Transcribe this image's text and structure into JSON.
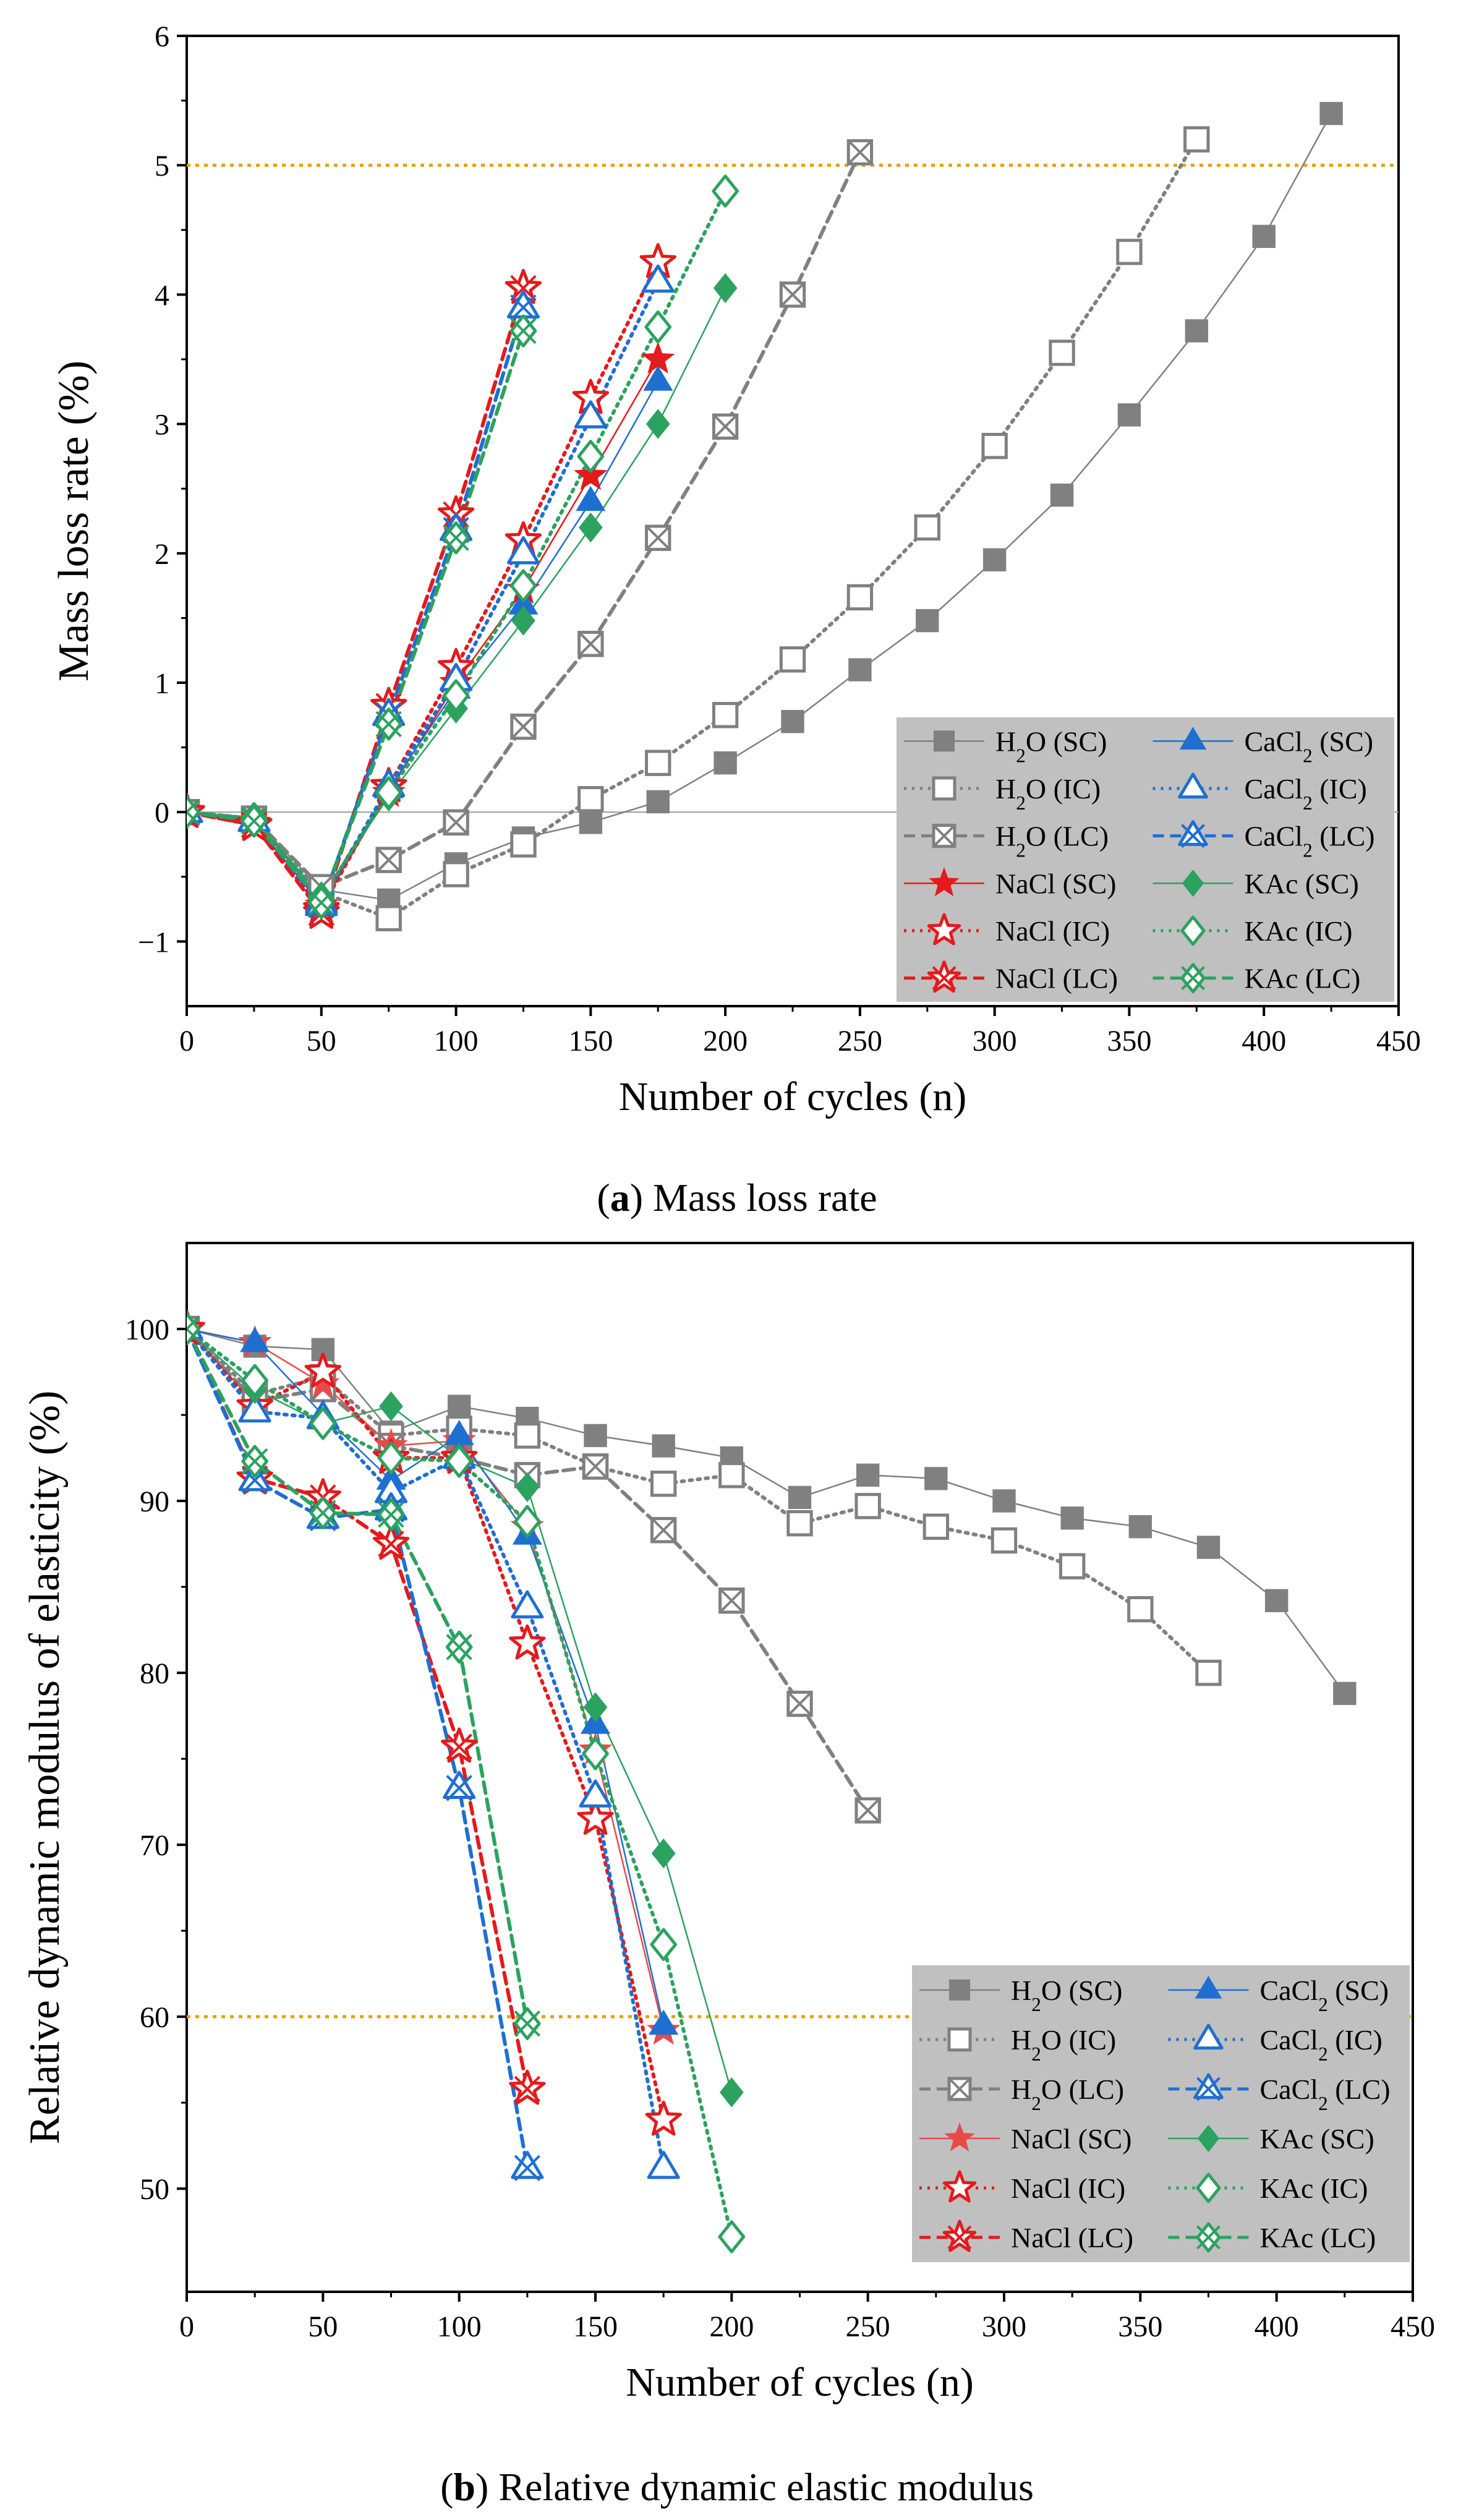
{
  "panels": [
    {
      "caption_letter": "a",
      "caption_text": "Mass loss rate"
    },
    {
      "caption_letter": "b",
      "caption_text": "Relative dynamic elastic modulus"
    }
  ],
  "chart_data": [
    {
      "type": "line",
      "title": "",
      "xlabel": "Number of cycles (n)",
      "ylabel": "Mass loss rate (%)",
      "xlim": [
        0,
        450
      ],
      "ylim": [
        -1.5,
        6
      ],
      "xticks": [
        "0",
        "50",
        "100",
        "150",
        "200",
        "250",
        "300",
        "350",
        "400",
        "450"
      ],
      "yticks": [
        "−1",
        "0",
        "1",
        "2",
        "3",
        "4",
        "5",
        "6"
      ],
      "ytick_values": [
        -1,
        0,
        1,
        2,
        3,
        4,
        5,
        6
      ],
      "reference_line": {
        "y": 5,
        "color": "#e0a300"
      },
      "zero_line": true,
      "legend_position": "bottom-right",
      "series": [
        {
          "name": "H₂O (SC)",
          "base": "H",
          "sub": "2",
          "rest": "O (SC)",
          "color": "#808080",
          "marker": "square-filled",
          "line": "solid",
          "x": [
            0,
            25,
            50,
            75,
            100,
            125,
            150,
            175,
            200,
            225,
            250,
            275,
            300,
            325,
            350,
            375,
            400,
            425
          ],
          "y": [
            0,
            -0.05,
            -0.6,
            -0.68,
            -0.4,
            -0.2,
            -0.08,
            0.08,
            0.38,
            0.7,
            1.1,
            1.48,
            1.95,
            2.45,
            3.07,
            3.72,
            4.45,
            5.4
          ]
        },
        {
          "name": "H₂O (IC)",
          "base": "H",
          "sub": "2",
          "rest": "O (IC)",
          "color": "#808080",
          "marker": "square-open",
          "line": "dotted",
          "x": [
            0,
            25,
            50,
            75,
            100,
            125,
            150,
            175,
            200,
            225,
            250,
            275,
            300,
            325,
            350,
            375
          ],
          "y": [
            0,
            -0.05,
            -0.62,
            -0.82,
            -0.48,
            -0.25,
            0.1,
            0.38,
            0.75,
            1.18,
            1.66,
            2.2,
            2.83,
            3.55,
            4.33,
            5.2
          ]
        },
        {
          "name": "H₂O (LC)",
          "base": "H",
          "sub": "2",
          "rest": "O (LC)",
          "color": "#808080",
          "marker": "square-x",
          "line": "dashed",
          "x": [
            0,
            25,
            50,
            75,
            100,
            125,
            150,
            175,
            200,
            225,
            250
          ],
          "y": [
            0,
            -0.05,
            -0.58,
            -0.37,
            -0.08,
            0.66,
            1.3,
            2.12,
            2.98,
            4.0,
            5.1
          ]
        },
        {
          "name": "NaCl (SC)",
          "base": "NaCl (SC)",
          "sub": "",
          "rest": "",
          "color": "#e41a1c",
          "marker": "star-filled",
          "line": "solid",
          "x": [
            0,
            25,
            50,
            75,
            100,
            125,
            150,
            175
          ],
          "y": [
            0,
            -0.08,
            -0.72,
            0.15,
            1.0,
            1.72,
            2.6,
            3.5
          ]
        },
        {
          "name": "NaCl (IC)",
          "base": "NaCl (IC)",
          "sub": "",
          "rest": "",
          "color": "#e41a1c",
          "marker": "star-open",
          "line": "dotted",
          "x": [
            0,
            25,
            50,
            75,
            100,
            125,
            150,
            175
          ],
          "y": [
            0,
            -0.1,
            -0.75,
            0.2,
            1.12,
            2.1,
            3.2,
            4.25
          ]
        },
        {
          "name": "NaCl (LC)",
          "base": "NaCl (LC)",
          "sub": "",
          "rest": "",
          "color": "#e41a1c",
          "marker": "star-x",
          "line": "dashed",
          "x": [
            0,
            25,
            50,
            75,
            100,
            125
          ],
          "y": [
            0,
            -0.1,
            -0.78,
            0.82,
            2.3,
            4.05
          ]
        },
        {
          "name": "CaCl₂ (SC)",
          "base": "CaCl",
          "sub": "2",
          "rest": " (SC)",
          "color": "#1f6fd1",
          "marker": "triangle-filled",
          "line": "solid",
          "x": [
            0,
            25,
            50,
            75,
            100,
            125,
            150,
            175
          ],
          "y": [
            0,
            -0.05,
            -0.68,
            0.18,
            0.95,
            1.6,
            2.4,
            3.33
          ]
        },
        {
          "name": "CaCl₂ (IC)",
          "base": "CaCl",
          "sub": "2",
          "rest": " (IC)",
          "color": "#1f6fd1",
          "marker": "triangle-open",
          "line": "dotted",
          "x": [
            0,
            25,
            50,
            75,
            100,
            125,
            150,
            175
          ],
          "y": [
            0,
            -0.07,
            -0.7,
            0.2,
            1.02,
            2.0,
            3.05,
            4.1
          ]
        },
        {
          "name": "CaCl₂ (LC)",
          "base": "CaCl",
          "sub": "2",
          "rest": " (LC)",
          "color": "#1f6fd1",
          "marker": "triangle-x",
          "line": "dashed",
          "x": [
            0,
            25,
            50,
            75,
            100,
            125
          ],
          "y": [
            0,
            -0.07,
            -0.72,
            0.75,
            2.18,
            3.9
          ]
        },
        {
          "name": "KAc (SC)",
          "base": "KAc (SC)",
          "sub": "",
          "rest": "",
          "color": "#2ca25f",
          "marker": "diamond-filled",
          "line": "solid",
          "x": [
            0,
            25,
            50,
            75,
            100,
            125,
            150,
            175,
            200
          ],
          "y": [
            0,
            -0.05,
            -0.65,
            0.12,
            0.8,
            1.48,
            2.2,
            3.0,
            4.05
          ]
        },
        {
          "name": "KAc (IC)",
          "base": "KAc (IC)",
          "sub": "",
          "rest": "",
          "color": "#2ca25f",
          "marker": "diamond-open",
          "line": "dotted",
          "x": [
            0,
            25,
            50,
            75,
            100,
            125,
            150,
            175,
            200
          ],
          "y": [
            0,
            -0.05,
            -0.67,
            0.15,
            0.9,
            1.75,
            2.75,
            3.75,
            4.8
          ]
        },
        {
          "name": "KAc (LC)",
          "base": "KAc (LC)",
          "sub": "",
          "rest": "",
          "color": "#2ca25f",
          "marker": "diamond-x",
          "line": "dashed",
          "x": [
            0,
            25,
            50,
            75,
            100,
            125
          ],
          "y": [
            0,
            -0.07,
            -0.7,
            0.68,
            2.12,
            3.72
          ]
        }
      ]
    },
    {
      "type": "line",
      "title": "",
      "xlabel": "Number of cycles (n)",
      "ylabel": "Relative dynamic modulus of elasticity (%)",
      "xlim": [
        0,
        450
      ],
      "ylim": [
        44,
        105
      ],
      "xticks": [
        "0",
        "50",
        "100",
        "150",
        "200",
        "250",
        "300",
        "350",
        "400",
        "450"
      ],
      "yticks": [
        "50",
        "60",
        "70",
        "80",
        "90",
        "100"
      ],
      "ytick_values": [
        50,
        60,
        70,
        80,
        90,
        100
      ],
      "reference_line": {
        "y": 60,
        "color": "#e0a300"
      },
      "zero_line": false,
      "legend_position": "bottom-right",
      "series": [
        {
          "name": "H₂O (SC)",
          "base": "H",
          "sub": "2",
          "rest": "O (SC)",
          "color": "#808080",
          "marker": "square-filled",
          "line": "solid",
          "x": [
            0,
            25,
            50,
            75,
            100,
            125,
            150,
            175,
            200,
            225,
            250,
            275,
            300,
            325,
            350,
            375,
            400,
            425
          ],
          "y": [
            100,
            99,
            98.8,
            94,
            95.5,
            94.8,
            93.8,
            93.2,
            92.5,
            90.2,
            91.5,
            91.3,
            90,
            89,
            88.5,
            87.3,
            84.2,
            78.8
          ]
        },
        {
          "name": "H₂O (IC)",
          "base": "H",
          "sub": "2",
          "rest": "O (IC)",
          "color": "#808080",
          "marker": "square-open",
          "line": "dotted",
          "x": [
            0,
            25,
            50,
            75,
            100,
            125,
            150,
            175,
            200,
            225,
            250,
            275,
            300,
            325,
            350,
            375
          ],
          "y": [
            100,
            96.2,
            97.2,
            93.8,
            94.2,
            93.8,
            92,
            91,
            91.5,
            88.7,
            89.7,
            88.5,
            87.7,
            86.2,
            83.7,
            80
          ]
        },
        {
          "name": "H₂O (LC)",
          "base": "H",
          "sub": "2",
          "rest": "O (LC)",
          "color": "#808080",
          "marker": "square-x",
          "line": "dashed",
          "x": [
            0,
            25,
            50,
            75,
            100,
            125,
            150,
            175,
            200,
            225,
            250
          ],
          "y": [
            100,
            95.8,
            96.5,
            93.2,
            92.5,
            91.5,
            92,
            88.3,
            84.2,
            78.2,
            72
          ]
        },
        {
          "name": "NaCl (SC)",
          "base": "NaCl (SC)",
          "sub": "",
          "rest": "",
          "color": "#e84a4a",
          "marker": "star-filled",
          "line": "solid",
          "x": [
            0,
            25,
            50,
            75,
            100,
            125,
            150,
            175
          ],
          "y": [
            100,
            99.2,
            96.8,
            93.2,
            93.5,
            88.5,
            75.5,
            59.2
          ]
        },
        {
          "name": "NaCl (IC)",
          "base": "NaCl (IC)",
          "sub": "",
          "rest": "",
          "color": "#e41a1c",
          "marker": "star-open",
          "line": "dotted",
          "x": [
            0,
            25,
            50,
            75,
            100,
            125,
            150,
            175
          ],
          "y": [
            100,
            95.5,
            97.5,
            92.5,
            92.5,
            81.7,
            71.5,
            54
          ]
        },
        {
          "name": "NaCl (LC)",
          "base": "NaCl (LC)",
          "sub": "",
          "rest": "",
          "color": "#e41a1c",
          "marker": "star-x",
          "line": "dashed",
          "x": [
            0,
            25,
            50,
            75,
            100,
            125
          ],
          "y": [
            100,
            91.3,
            90.2,
            87.5,
            75.7,
            55.8
          ]
        },
        {
          "name": "CaCl₂ (SC)",
          "base": "CaCl",
          "sub": "2",
          "rest": " (SC)",
          "color": "#1f6fd1",
          "marker": "triangle-filled",
          "line": "solid",
          "x": [
            0,
            25,
            50,
            75,
            100,
            125,
            150,
            175
          ],
          "y": [
            100,
            99.2,
            95,
            91.2,
            93.8,
            88,
            77,
            59.5
          ]
        },
        {
          "name": "CaCl₂ (IC)",
          "base": "CaCl",
          "sub": "2",
          "rest": " (IC)",
          "color": "#1f6fd1",
          "marker": "triangle-open",
          "line": "dotted",
          "x": [
            0,
            25,
            50,
            75,
            100,
            125,
            150,
            175
          ],
          "y": [
            100,
            95.2,
            94.8,
            90.5,
            92.5,
            83.8,
            72.8,
            51.2
          ]
        },
        {
          "name": "CaCl₂ (LC)",
          "base": "CaCl",
          "sub": "2",
          "rest": " (LC)",
          "color": "#1f6fd1",
          "marker": "triangle-x",
          "line": "dashed",
          "x": [
            0,
            25,
            50,
            75,
            100,
            125
          ],
          "y": [
            100,
            91.2,
            89,
            89.5,
            73.3,
            51.2
          ]
        },
        {
          "name": "KAc (SC)",
          "base": "KAc (SC)",
          "sub": "",
          "rest": "",
          "color": "#2ca25f",
          "marker": "diamond-filled",
          "line": "solid",
          "x": [
            0,
            25,
            50,
            75,
            100,
            125,
            150,
            175,
            200
          ],
          "y": [
            100,
            96.5,
            94.5,
            95.5,
            92.5,
            90.8,
            78,
            69.5,
            55.6
          ]
        },
        {
          "name": "KAc (IC)",
          "base": "KAc (IC)",
          "sub": "",
          "rest": "",
          "color": "#2ca25f",
          "marker": "diamond-open",
          "line": "dotted",
          "x": [
            0,
            25,
            50,
            75,
            100,
            125,
            150,
            175,
            200
          ],
          "y": [
            100,
            97,
            94.5,
            92.5,
            92.3,
            88.8,
            75.3,
            64.2,
            47.2
          ]
        },
        {
          "name": "KAc (LC)",
          "base": "KAc (LC)",
          "sub": "",
          "rest": "",
          "color": "#2ca25f",
          "marker": "diamond-x",
          "line": "dashed",
          "x": [
            0,
            25,
            50,
            75,
            100,
            125
          ],
          "y": [
            100,
            92.3,
            89.3,
            89.2,
            81.5,
            59.6
          ]
        }
      ]
    }
  ]
}
